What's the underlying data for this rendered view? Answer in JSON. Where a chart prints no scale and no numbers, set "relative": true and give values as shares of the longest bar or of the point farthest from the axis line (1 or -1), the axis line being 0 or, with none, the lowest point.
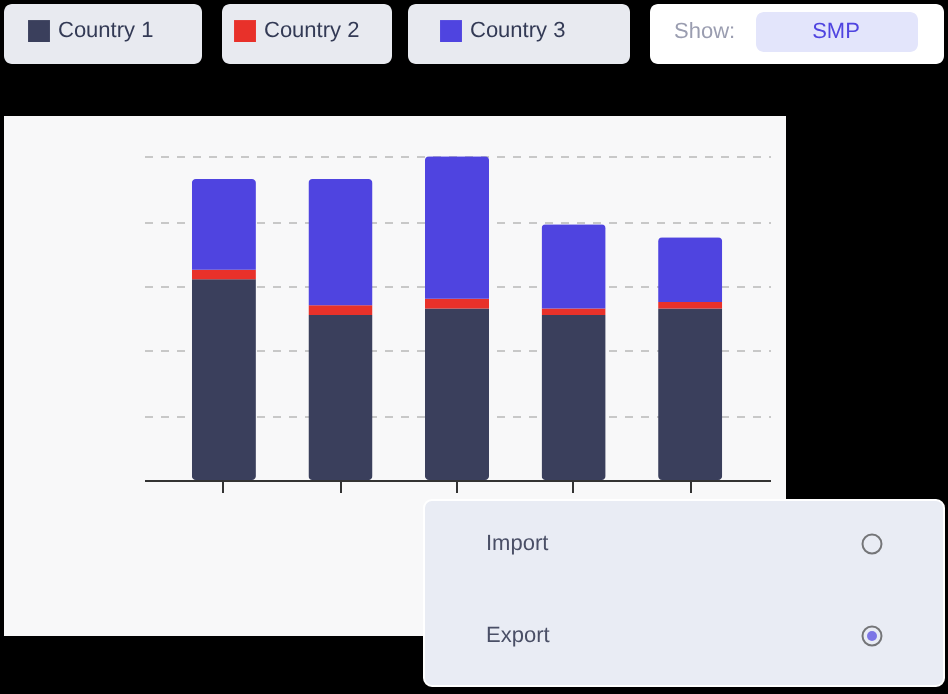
{
  "chart_data": {
    "type": "bar",
    "stacked": true,
    "relative": true,
    "categories": [
      null,
      null,
      null,
      null,
      null
    ],
    "series": [
      {
        "name": "Country 1",
        "color": "#3a3f5c",
        "values": [
          0.62,
          0.51,
          0.53,
          0.51,
          0.53
        ]
      },
      {
        "name": "Country 2",
        "color": "#e8312a",
        "values": [
          0.03,
          0.03,
          0.03,
          0.02,
          0.02
        ]
      },
      {
        "name": "Country 3",
        "color": "#4f44e0",
        "values": [
          0.28,
          0.39,
          0.44,
          0.26,
          0.2
        ]
      }
    ],
    "grid": "y",
    "legend": "top",
    "tick_labels": false,
    "annotations": [
      "Show:",
      "SMP",
      "Import",
      "Export"
    ]
  }
}
